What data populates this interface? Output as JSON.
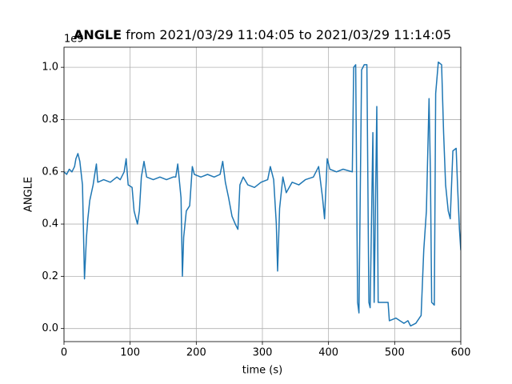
{
  "chart_data": {
    "type": "line",
    "title": {
      "name": "ANGLE",
      "text": "from 2021/03/29 11:04:05 to 2021/03/29 11:14:05"
    },
    "xlabel": "time (s)",
    "ylabel": "ANGLE",
    "offset_text": "1e9",
    "color": "#1f77b4",
    "grid": true,
    "xlim": [
      0,
      600
    ],
    "xticks": [
      0,
      100,
      200,
      300,
      400,
      500,
      600
    ],
    "ylim": [
      -0.05,
      1.077
    ],
    "yticks": [
      {
        "value": 0,
        "label": "0.0"
      },
      0.2,
      0.4,
      0.6,
      0.8,
      {
        "value": 1,
        "label": "1.0"
      }
    ],
    "x": [
      0,
      4,
      8,
      12,
      16,
      18,
      21,
      24,
      28,
      31,
      34,
      36,
      39,
      44,
      47,
      49,
      51,
      60,
      70,
      80,
      85,
      91,
      94,
      97,
      103,
      106,
      111,
      114,
      117,
      121,
      125,
      135,
      145,
      155,
      165,
      169,
      172,
      177,
      179,
      181,
      185,
      190,
      194,
      197,
      207,
      217,
      227,
      236,
      240,
      244,
      249,
      254,
      259,
      263,
      266,
      271,
      278,
      288,
      298,
      308,
      312,
      317,
      321,
      323,
      326,
      331,
      336,
      345,
      355,
      365,
      377,
      385,
      391,
      394,
      398,
      402,
      412,
      422,
      436,
      438,
      441,
      444,
      446,
      450,
      454,
      458,
      461,
      463,
      467,
      469,
      473,
      475,
      480,
      490,
      492,
      502,
      508,
      514,
      520,
      524,
      532,
      540,
      544,
      548,
      552,
      554,
      556,
      560,
      562,
      566,
      571,
      574,
      577,
      581,
      584,
      588,
      593,
      595,
      598,
      600
    ],
    "values": [
      0.6,
      0.59,
      0.61,
      0.6,
      0.62,
      0.65,
      0.67,
      0.64,
      0.55,
      0.19,
      0.35,
      0.42,
      0.49,
      0.55,
      0.6,
      0.63,
      0.56,
      0.57,
      0.56,
      0.58,
      0.57,
      0.6,
      0.65,
      0.55,
      0.54,
      0.45,
      0.4,
      0.45,
      0.58,
      0.64,
      0.58,
      0.57,
      0.58,
      0.57,
      0.58,
      0.58,
      0.63,
      0.5,
      0.2,
      0.35,
      0.45,
      0.47,
      0.62,
      0.59,
      0.58,
      0.59,
      0.58,
      0.59,
      0.64,
      0.56,
      0.5,
      0.43,
      0.4,
      0.38,
      0.55,
      0.58,
      0.55,
      0.54,
      0.56,
      0.57,
      0.62,
      0.57,
      0.4,
      0.22,
      0.46,
      0.58,
      0.52,
      0.56,
      0.55,
      0.57,
      0.58,
      0.62,
      0.5,
      0.42,
      0.65,
      0.61,
      0.6,
      0.61,
      0.6,
      1.0,
      1.01,
      0.1,
      0.06,
      0.99,
      1.01,
      1.01,
      0.1,
      0.08,
      0.75,
      0.1,
      0.85,
      0.1,
      0.1,
      0.1,
      0.03,
      0.04,
      0.03,
      0.02,
      0.03,
      0.01,
      0.02,
      0.05,
      0.3,
      0.45,
      0.88,
      0.6,
      0.1,
      0.09,
      0.9,
      1.02,
      1.01,
      0.75,
      0.55,
      0.45,
      0.42,
      0.68,
      0.69,
      0.55,
      0.38,
      0.3
    ]
  }
}
